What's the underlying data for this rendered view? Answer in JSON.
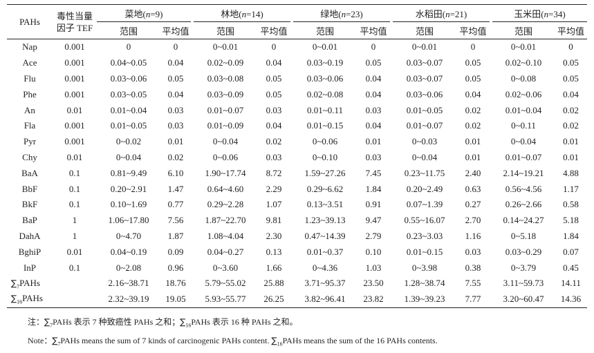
{
  "header": {
    "pahs": "PAHs",
    "tef_line1": "毒性当量",
    "tef_line2": "因子 TEF",
    "range_label": "范围",
    "mean_label": "平均值",
    "groups": [
      {
        "name": "菜地",
        "italic": "n",
        "eq": "=9)"
      },
      {
        "name": "林地",
        "italic": "n",
        "eq": "=14)"
      },
      {
        "name": "绿地",
        "italic": "n",
        "eq": "=23)"
      },
      {
        "name": "水稻田",
        "italic": "n",
        "eq": "=21)"
      },
      {
        "name": "玉米田",
        "italic": "n",
        "eq": "=34)"
      }
    ]
  },
  "rows": [
    {
      "pah": "Nap",
      "tef": "0.001",
      "v": [
        "0",
        "0",
        "0~0.01",
        "0",
        "0~0.01",
        "0",
        "0~0.01",
        "0",
        "0~0.01",
        "0"
      ]
    },
    {
      "pah": "Ace",
      "tef": "0.001",
      "v": [
        "0.04~0.05",
        "0.04",
        "0.02~0.09",
        "0.04",
        "0.03~0.19",
        "0.05",
        "0.03~0.07",
        "0.05",
        "0.02~0.10",
        "0.05"
      ]
    },
    {
      "pah": "Flu",
      "tef": "0.001",
      "v": [
        "0.03~0.06",
        "0.05",
        "0.03~0.08",
        "0.05",
        "0.03~0.06",
        "0.04",
        "0.03~0.07",
        "0.05",
        "0~0.08",
        "0.05"
      ]
    },
    {
      "pah": "Phe",
      "tef": "0.001",
      "v": [
        "0.03~0.05",
        "0.04",
        "0.03~0.09",
        "0.05",
        "0.02~0.08",
        "0.04",
        "0.03~0.06",
        "0.04",
        "0.02~0.06",
        "0.04"
      ]
    },
    {
      "pah": "An",
      "tef": "0.01",
      "v": [
        "0.01~0.04",
        "0.03",
        "0.01~0.07",
        "0.03",
        "0.01~0.11",
        "0.03",
        "0.01~0.05",
        "0.02",
        "0.01~0.04",
        "0.02"
      ]
    },
    {
      "pah": "Fla",
      "tef": "0.001",
      "v": [
        "0.01~0.05",
        "0.03",
        "0.01~0.09",
        "0.04",
        "0.01~0.15",
        "0.04",
        "0.01~0.07",
        "0.02",
        "0~0.11",
        "0.02"
      ]
    },
    {
      "pah": "Pyr",
      "tef": "0.001",
      "v": [
        "0~0.02",
        "0.01",
        "0~0.04",
        "0.02",
        "0~0.06",
        "0.01",
        "0~0.03",
        "0.01",
        "0~0.04",
        "0.01"
      ]
    },
    {
      "pah": "Chy",
      "tef": "0.01",
      "v": [
        "0~0.04",
        "0.02",
        "0~0.06",
        "0.03",
        "0~0.10",
        "0.03",
        "0~0.04",
        "0.01",
        "0.01~0.07",
        "0.01"
      ]
    },
    {
      "pah": "BaA",
      "tef": "0.1",
      "v": [
        "0.81~9.49",
        "6.10",
        "1.90~17.74",
        "8.72",
        "1.59~27.26",
        "7.45",
        "0.23~11.75",
        "2.40",
        "2.14~19.21",
        "4.88"
      ]
    },
    {
      "pah": "BbF",
      "tef": "0.1",
      "v": [
        "0.20~2.91",
        "1.47",
        "0.64~4.60",
        "2.29",
        "0.29~6.62",
        "1.84",
        "0.20~2.49",
        "0.63",
        "0.56~4.56",
        "1.17"
      ]
    },
    {
      "pah": "BkF",
      "tef": "0.1",
      "v": [
        "0.10~1.69",
        "0.77",
        "0.29~2.28",
        "1.07",
        "0.13~3.51",
        "0.91",
        "0.07~1.39",
        "0.27",
        "0.26~2.66",
        "0.58"
      ]
    },
    {
      "pah": "BaP",
      "tef": "1",
      "v": [
        "1.06~17.80",
        "7.56",
        "1.87~22.70",
        "9.81",
        "1.23~39.13",
        "9.47",
        "0.55~16.07",
        "2.70",
        "0.14~24.27",
        "5.18"
      ]
    },
    {
      "pah": "DahA",
      "tef": "1",
      "v": [
        "0~4.70",
        "1.87",
        "1.08~4.04",
        "2.30",
        "0.47~14.39",
        "2.79",
        "0.23~3.03",
        "1.16",
        "0~5.18",
        "1.84"
      ]
    },
    {
      "pah": "BghiP",
      "tef": "0.01",
      "v": [
        "0.04~0.19",
        "0.09",
        "0.04~0.27",
        "0.13",
        "0.01~0.37",
        "0.10",
        "0.01~0.15",
        "0.03",
        "0.03~0.29",
        "0.07"
      ]
    },
    {
      "pah": "InP",
      "tef": "0.1",
      "v": [
        "0~2.08",
        "0.96",
        "0~3.60",
        "1.66",
        "0~4.36",
        "1.03",
        "0~3.98",
        "0.38",
        "0~3.79",
        "0.45"
      ]
    }
  ],
  "sum_rows": [
    {
      "sym": "∑",
      "sub": "7",
      "label": "PAHs",
      "tef": "",
      "v": [
        "2.16~38.71",
        "18.76",
        "5.79~55.02",
        "25.88",
        "3.71~95.37",
        "23.50",
        "1.28~38.74",
        "7.55",
        "3.11~59.73",
        "14.11"
      ]
    },
    {
      "sym": "∑",
      "sub": "16",
      "label": "PAHs",
      "tef": "",
      "v": [
        "2.32~39.19",
        "19.05",
        "5.93~55.77",
        "26.25",
        "3.82~96.41",
        "23.82",
        "1.39~39.23",
        "7.77",
        "3.20~60.47",
        "14.36"
      ]
    }
  ],
  "notes": {
    "zh": {
      "a": "注：",
      "s1": "∑",
      "sub1": "7",
      "b": "PAHs 表示 7 种致癌性 PAHs 之和；",
      "s2": "∑",
      "sub2": "16",
      "c": "PAHs 表示 16 种 PAHs 之和。"
    },
    "en": {
      "a": "Note：",
      "s1": "∑",
      "sub1": "7",
      "b": "PAHs means the sum of 7 kinds of carcinogenic PAHs content. ",
      "s2": "∑",
      "sub2": "16",
      "c": "PAHs means the sum of the 16 PAHs contents."
    }
  }
}
